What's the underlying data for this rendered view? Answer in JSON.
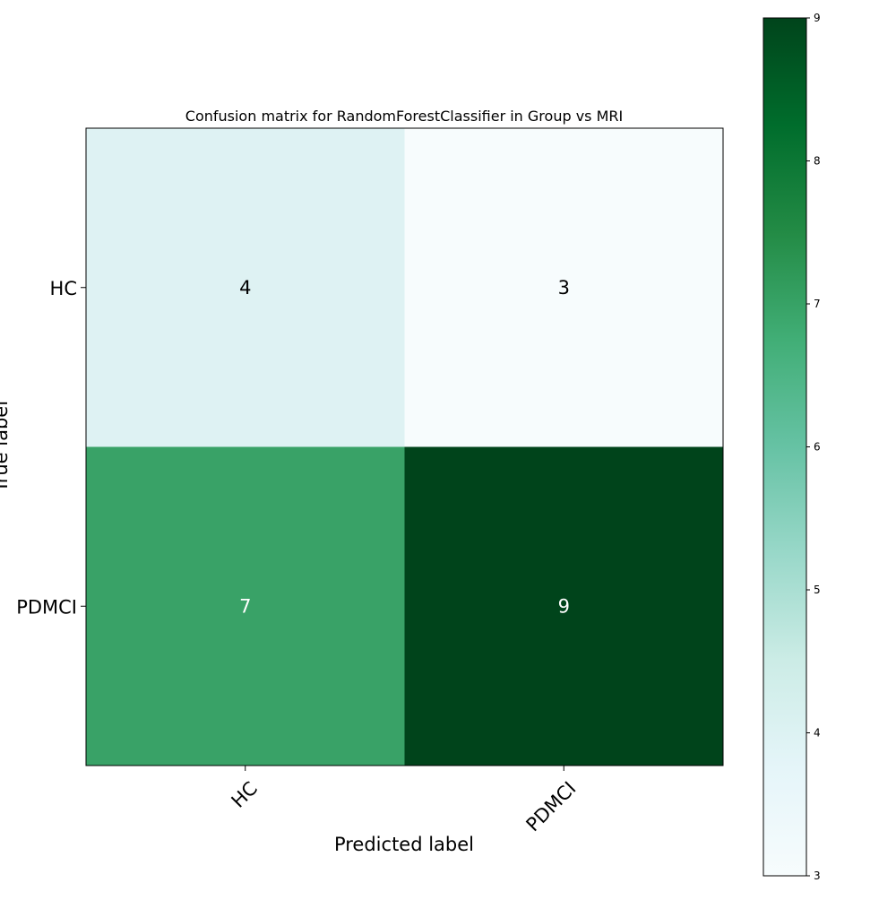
{
  "chart_data": {
    "type": "heatmap",
    "title": "Confusion matrix for RandomForestClassifier in Group vs MRI",
    "xlabel": "Predicted label",
    "ylabel": "True label",
    "x_categories": [
      "HC",
      "PDMCI"
    ],
    "y_categories": [
      "HC",
      "PDMCI"
    ],
    "values": [
      [
        4,
        3
      ],
      [
        7,
        9
      ]
    ],
    "colormap": "BuGn",
    "color_range": [
      3,
      9
    ],
    "colorbar_ticks": [
      3,
      4,
      5,
      6,
      7,
      8,
      9
    ],
    "grid": false,
    "text_colors": {
      "light_cell": "#000000",
      "dark_cell": "#ffffff"
    },
    "colors": {
      "v3": "#f7fcfd",
      "v4": "#def2f3",
      "v7": "#39a267",
      "v9": "#00441b"
    }
  }
}
